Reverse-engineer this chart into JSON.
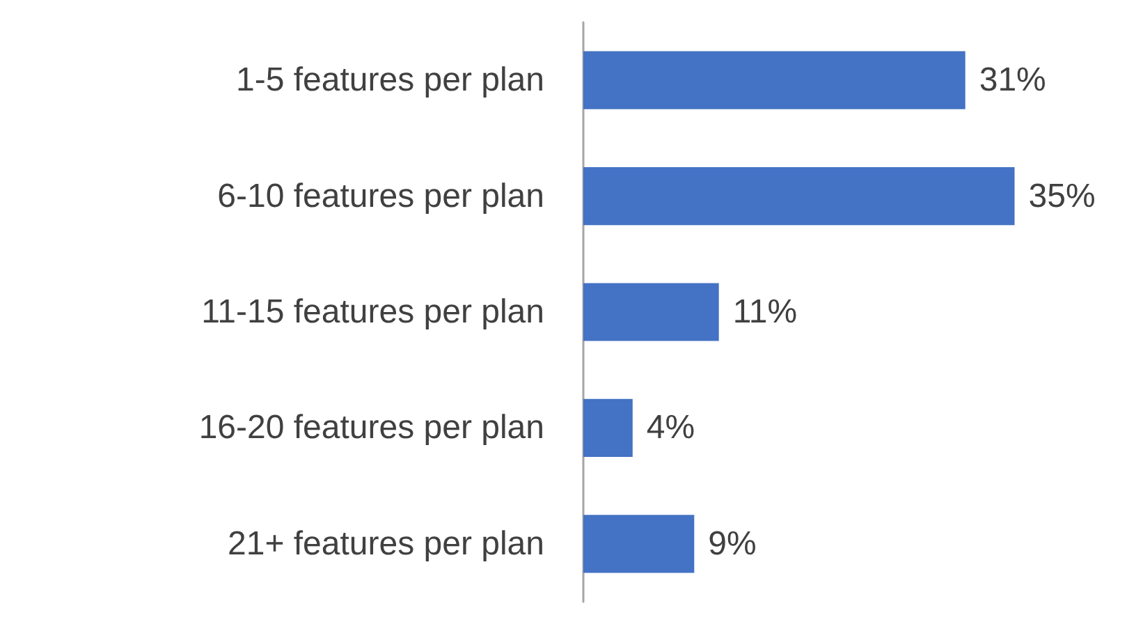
{
  "chart_data": {
    "type": "bar",
    "orientation": "horizontal",
    "categories": [
      "1-5 features per plan",
      "6-10 features per plan",
      "11-15 features per plan",
      "16-20 features per plan",
      "21+ features per plan"
    ],
    "values": [
      31,
      35,
      11,
      4,
      9
    ],
    "value_labels": [
      "31%",
      "35%",
      "11%",
      "4%",
      "9%"
    ],
    "color": "#4472c4"
  }
}
